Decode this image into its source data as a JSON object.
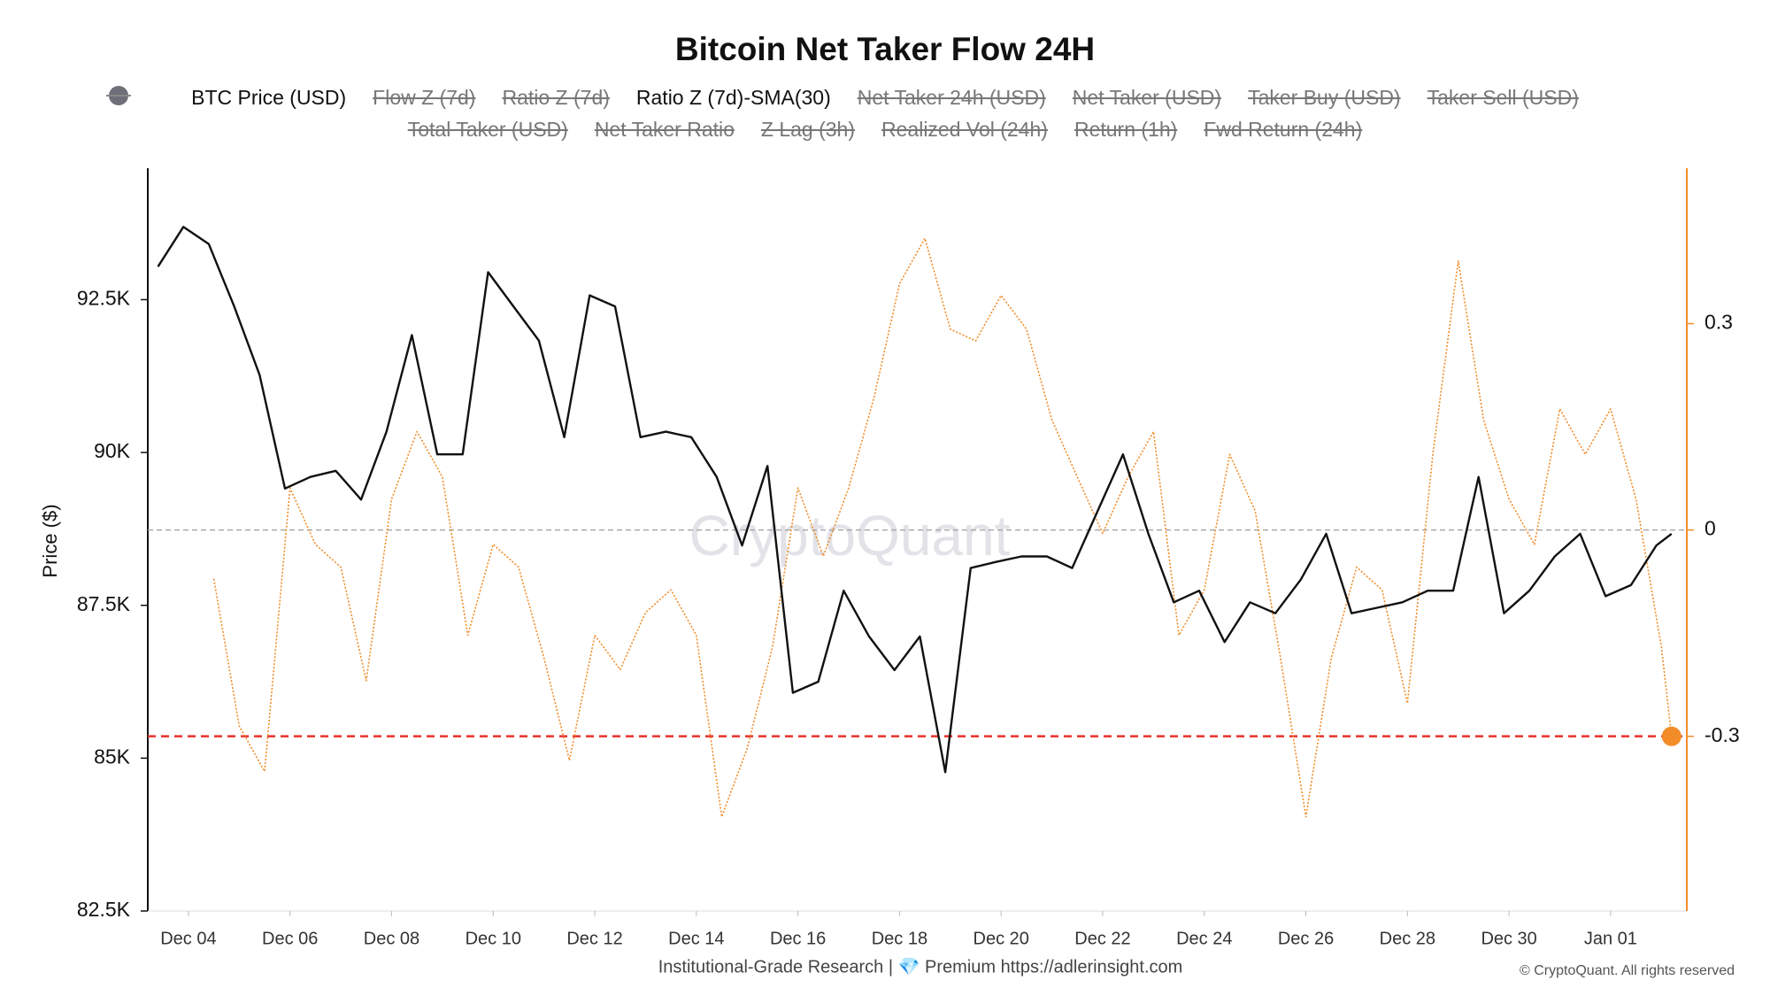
{
  "chart_data": {
    "type": "line",
    "title": "Bitcoin Net Taker Flow 24H",
    "y_label": "Price ($)",
    "watermark": "CryptoQuant",
    "footer": "Institutional-Grade Research | 💎 Premium https://adlerinsight.com",
    "copyright": "© CryptoQuant. All rights reserved",
    "xlim": [
      3.2,
      33.5
    ],
    "xticks": [
      {
        "value": 4,
        "label": "Dec 04"
      },
      {
        "value": 6,
        "label": "Dec 06"
      },
      {
        "value": 8,
        "label": "Dec 08"
      },
      {
        "value": 10,
        "label": "Dec 10"
      },
      {
        "value": 12,
        "label": "Dec 12"
      },
      {
        "value": 14,
        "label": "Dec 14"
      },
      {
        "value": 16,
        "label": "Dec 16"
      },
      {
        "value": 18,
        "label": "Dec 18"
      },
      {
        "value": 20,
        "label": "Dec 20"
      },
      {
        "value": 22,
        "label": "Dec 22"
      },
      {
        "value": 24,
        "label": "Dec 24"
      },
      {
        "value": 26,
        "label": "Dec 26"
      },
      {
        "value": 28,
        "label": "Dec 28"
      },
      {
        "value": 30,
        "label": "Dec 30"
      },
      {
        "value": 32,
        "label": "Jan 01"
      }
    ],
    "ylim": [
      82500,
      94650
    ],
    "yticks": [
      {
        "value": 82500,
        "label": "82.5K"
      },
      {
        "value": 85000,
        "label": "85K"
      },
      {
        "value": 87500,
        "label": "87.5K"
      },
      {
        "value": 90000,
        "label": "90K"
      },
      {
        "value": 92500,
        "label": "92.5K"
      }
    ],
    "y2lim": [
      -0.554,
      0.526
    ],
    "y2ticks": [
      -0.3,
      0,
      0.3
    ],
    "y2_axis_color": "#f28c28",
    "zero_line": true,
    "threshold": {
      "value": -0.3,
      "axis": "y2",
      "color": "#e8322b"
    },
    "series": [
      {
        "name": "BTC Price (USD)",
        "color": "#111111",
        "visible": true,
        "style": "line",
        "axis": "y",
        "x": [
          3.4,
          3.9,
          4.4,
          4.9,
          5.4,
          5.9,
          6.4,
          6.9,
          7.4,
          7.9,
          8.4,
          8.9,
          9.4,
          9.9,
          10.4,
          10.9,
          11.4,
          11.9,
          12.4,
          12.9,
          13.4,
          13.9,
          14.4,
          14.9,
          15.4,
          15.9,
          16.4,
          16.9,
          17.4,
          17.9,
          18.4,
          18.9,
          19.4,
          19.9,
          20.4,
          20.9,
          21.4,
          21.9,
          22.4,
          22.9,
          23.4,
          23.9,
          24.4,
          24.9,
          25.4,
          25.9,
          26.4,
          26.9,
          27.4,
          27.9,
          28.4,
          28.9,
          29.4,
          29.9,
          30.4,
          30.9,
          31.4,
          31.9,
          32.4,
          32.9,
          33.2
        ],
        "values": [
          93040,
          93690,
          93410,
          92390,
          91270,
          89410,
          89600,
          89700,
          89230,
          90340,
          91920,
          89970,
          89970,
          92950,
          92390,
          91830,
          90250,
          92570,
          92390,
          90250,
          90340,
          90250,
          89600,
          88480,
          89780,
          86070,
          86250,
          87740,
          86990,
          86440,
          86990,
          84770,
          88110,
          88210,
          88300,
          88300,
          88110,
          89040,
          89970,
          88670,
          87550,
          87740,
          86900,
          87550,
          87370,
          87920,
          88670,
          87370,
          87460,
          87550,
          87740,
          87740,
          89600,
          87370,
          87740,
          88300,
          88670,
          87650,
          87830,
          88480,
          88670
        ]
      },
      {
        "name": "Flow Z (7d)",
        "color": "#6e6e78",
        "visible": false,
        "style": "dot"
      },
      {
        "name": "Ratio Z (7d)",
        "color": "#888888",
        "visible": false,
        "style": "line"
      },
      {
        "name": "Ratio Z (7d)-SMA(30)",
        "color": "#f28c28",
        "visible": true,
        "style": "dotted",
        "axis": "y2",
        "x": [
          4.5,
          5.0,
          5.5,
          6.0,
          6.5,
          7.0,
          7.5,
          8.0,
          8.5,
          9.0,
          9.5,
          10.0,
          10.5,
          11.0,
          11.5,
          12.0,
          12.5,
          13.0,
          13.5,
          14.0,
          14.5,
          15.0,
          15.5,
          16.0,
          16.5,
          17.0,
          17.5,
          18.0,
          18.5,
          19.0,
          19.5,
          20.0,
          20.5,
          21.0,
          21.5,
          22.0,
          22.5,
          23.0,
          23.5,
          24.0,
          24.5,
          25.0,
          25.5,
          26.0,
          26.5,
          27.0,
          27.5,
          28.0,
          28.5,
          29.0,
          29.5,
          30.0,
          30.5,
          31.0,
          31.5,
          32.0,
          32.5,
          33.0,
          33.2
        ],
        "values": [
          -0.071,
          -0.285,
          -0.351,
          0.061,
          -0.021,
          -0.054,
          -0.219,
          0.045,
          0.143,
          0.077,
          -0.153,
          -0.021,
          -0.054,
          -0.186,
          -0.335,
          -0.153,
          -0.203,
          -0.12,
          -0.087,
          -0.153,
          -0.417,
          -0.318,
          -0.17,
          0.061,
          -0.038,
          0.061,
          0.193,
          0.358,
          0.424,
          0.292,
          0.275,
          0.341,
          0.292,
          0.16,
          0.077,
          -0.005,
          0.077,
          0.143,
          -0.153,
          -0.087,
          0.11,
          0.028,
          -0.186,
          -0.417,
          -0.186,
          -0.054,
          -0.087,
          -0.252,
          0.11,
          0.391,
          0.16,
          0.045,
          -0.021,
          0.176,
          0.11,
          0.176,
          0.045,
          -0.17,
          -0.3
        ]
      },
      {
        "name": "Net Taker 24h (USD)",
        "color": "#888888",
        "visible": false,
        "style": "line"
      },
      {
        "name": "Net Taker (USD)",
        "color": "#888888",
        "visible": false,
        "style": "line"
      },
      {
        "name": "Taker Buy (USD)",
        "color": "#888888",
        "visible": false,
        "style": "line"
      },
      {
        "name": "Taker Sell (USD)",
        "color": "#888888",
        "visible": false,
        "style": "line"
      },
      {
        "name": "Total Taker (USD)",
        "color": "#888888",
        "visible": false,
        "style": "line"
      },
      {
        "name": "Net Taker Ratio",
        "color": "#888888",
        "visible": false,
        "style": "line"
      },
      {
        "name": "Z Lag (3h)",
        "color": "#888888",
        "visible": false,
        "style": "line"
      },
      {
        "name": "Realized Vol (24h)",
        "color": "#888888",
        "visible": false,
        "style": "line"
      },
      {
        "name": "Return (1h)",
        "color": "#888888",
        "visible": false,
        "style": "line"
      },
      {
        "name": "Fwd Return (24h)",
        "color": "#888888",
        "visible": false,
        "style": "line"
      }
    ]
  }
}
